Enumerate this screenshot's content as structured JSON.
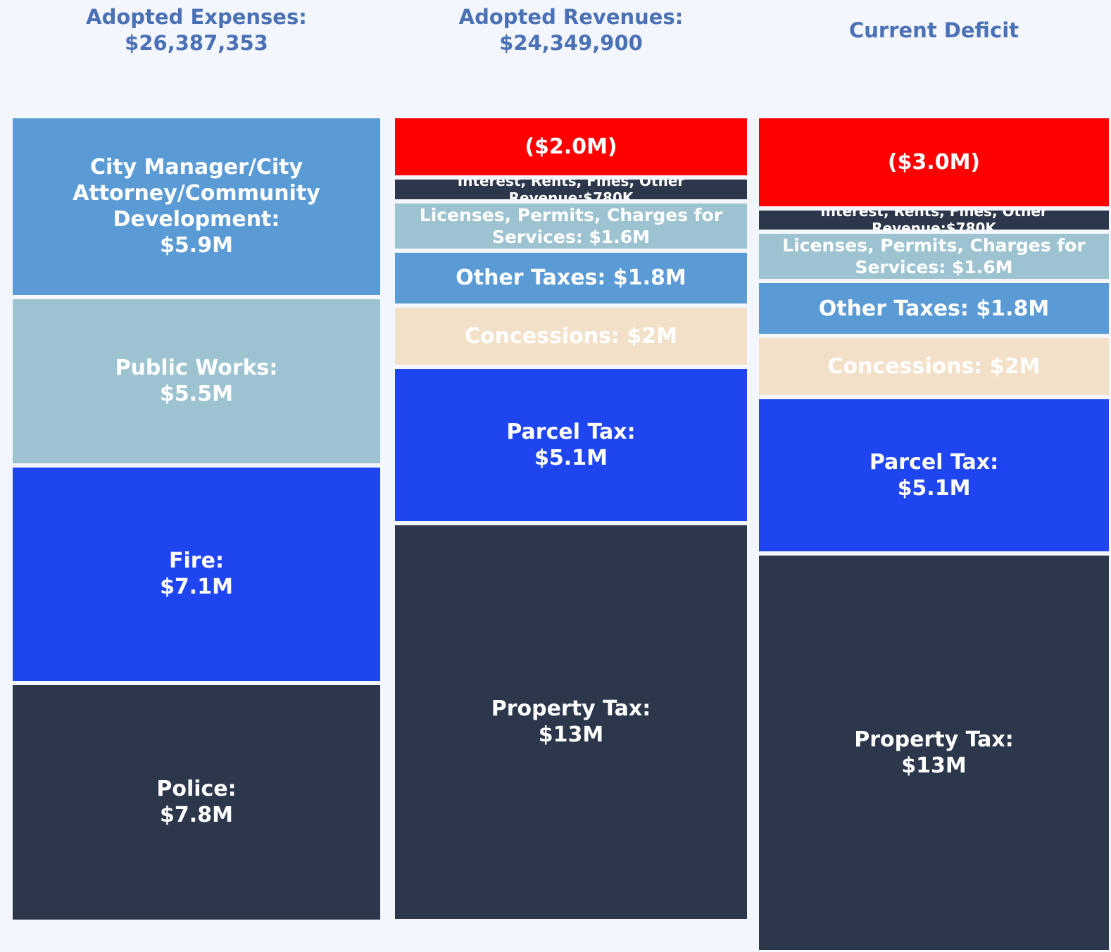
{
  "chart_data": {
    "type": "stacked_bar",
    "columns": [
      {
        "title": "Adopted Expenses:",
        "subtitle": "$26,387,353",
        "segments": [
          {
            "name": "City Manager/City Attorney/Community Development:",
            "value": 5.9,
            "value_label": "$5.9M",
            "color": "#5b9bd5"
          },
          {
            "name": "Public Works:",
            "value": 5.5,
            "value_label": "$5.5M",
            "color": "#9dc3d1"
          },
          {
            "name": "Fire:",
            "value": 7.1,
            "value_label": "$7.1M",
            "color": "#1f45f0"
          },
          {
            "name": "Police:",
            "value": 7.8,
            "value_label": "$7.8M",
            "color": "#2d374b"
          }
        ]
      },
      {
        "title": "Adopted Revenues:",
        "subtitle": "$24,349,900",
        "segments": [
          {
            "value": -2.0,
            "value_label": "($2.0M)",
            "color": "#ff0000"
          },
          {
            "name": "Interest, Rents, Fines, Other Revenue:",
            "value": 0.78,
            "value_label": "$780K",
            "color": "#2d374b"
          },
          {
            "name": "Licenses, Permits, Charges for Services:",
            "value": 1.6,
            "value_label": "$1.6M",
            "color": "#9dc3d1"
          },
          {
            "name": "Other Taxes:",
            "value": 1.8,
            "value_label": "$1.8M",
            "color": "#5b9bd5"
          },
          {
            "name": "Concessions:",
            "value": 2,
            "value_label": "$2M",
            "color": "#f2e1c8"
          },
          {
            "name": "Parcel Tax:",
            "value": 5.1,
            "value_label": "$5.1M",
            "color": "#1f45f0"
          },
          {
            "name": "Property Tax:",
            "value": 13,
            "value_label": "$13M",
            "color": "#2d374b"
          }
        ]
      },
      {
        "title": "Current Deficit",
        "segments": [
          {
            "value": -3.0,
            "value_label": "($3.0M)",
            "color": "#ff0000"
          },
          {
            "name": "Interest, Rents, Fines, Other Revenue:",
            "value": 0.78,
            "value_label": "$780K",
            "color": "#2d374b"
          },
          {
            "name": "Licenses, Permits, Charges for Services:",
            "value": 1.6,
            "value_label": "$1.6M",
            "color": "#9dc3d1"
          },
          {
            "name": "Other Taxes:",
            "value": 1.8,
            "value_label": "$1.8M",
            "color": "#5b9bd5"
          },
          {
            "name": "Concessions:",
            "value": 2,
            "value_label": "$2M",
            "color": "#f2e1c8"
          },
          {
            "name": "Parcel Tax:",
            "value": 5.1,
            "value_label": "$5.1M",
            "color": "#1f45f0"
          },
          {
            "name": "Property Tax:",
            "value": 13,
            "value_label": "$13M",
            "color": "#2d374b"
          }
        ]
      }
    ]
  }
}
